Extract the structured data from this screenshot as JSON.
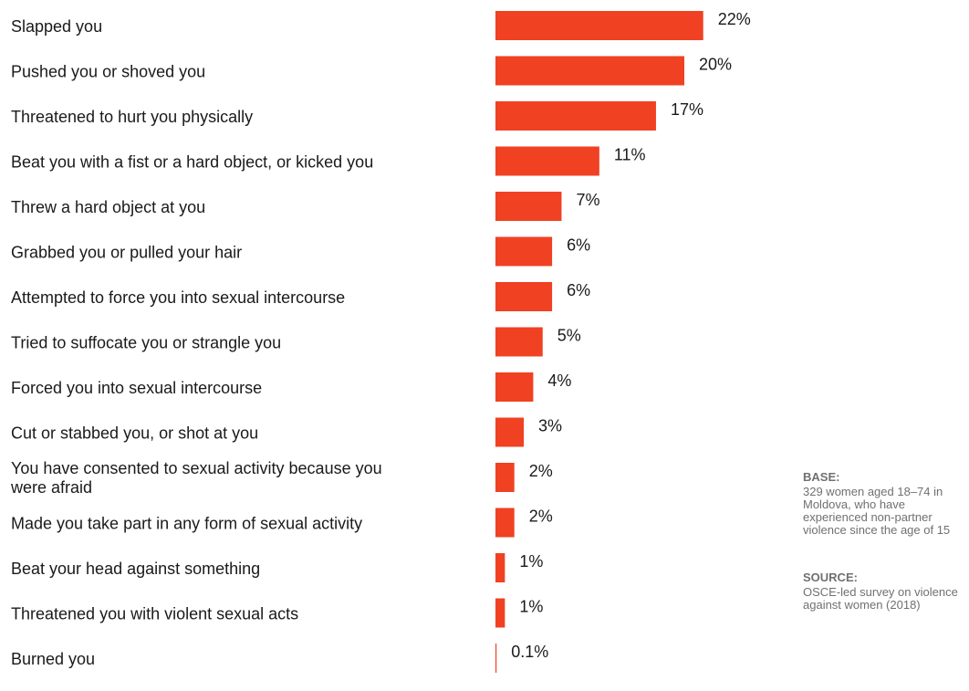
{
  "chart_data": {
    "type": "bar",
    "orientation": "horizontal",
    "categories": [
      "Slapped you",
      "Pushed you or shoved you",
      "Threatened to hurt you physically",
      "Beat you with a fist or a hard object, or kicked you",
      "Threw a hard object at you",
      "Grabbed you or pulled your hair",
      "Attempted to force you into sexual intercourse",
      "Tried to suffocate you or strangle you",
      "Forced you into sexual intercourse",
      "Cut or stabbed you, or shot at you",
      "You have consented to sexual activity because you were afraid",
      "Made you take part in any form of sexual activity",
      "Beat your head against something",
      "Threatened you with violent sexual acts",
      "Burned you"
    ],
    "values": [
      22,
      20,
      17,
      11,
      7,
      6,
      6,
      5,
      4,
      3,
      2,
      2,
      1,
      1,
      0.1
    ],
    "value_labels": [
      "22%",
      "20%",
      "17%",
      "11%",
      "7%",
      "6%",
      "6%",
      "5%",
      "4%",
      "3%",
      "2%",
      "2%",
      "1%",
      "1%",
      "0.1%"
    ],
    "unit": "%",
    "xlim": [
      0,
      22
    ],
    "grid": false,
    "legend": "none",
    "bar_color": "#f04123"
  },
  "notes": {
    "base_title": "BASE:",
    "base_text": "329 women aged 18–74 in Moldova, who have experienced non-partner violence since the age of 15",
    "source_title": "SOURCE:",
    "source_text": "OSCE-led survey on violence against women (2018)"
  }
}
